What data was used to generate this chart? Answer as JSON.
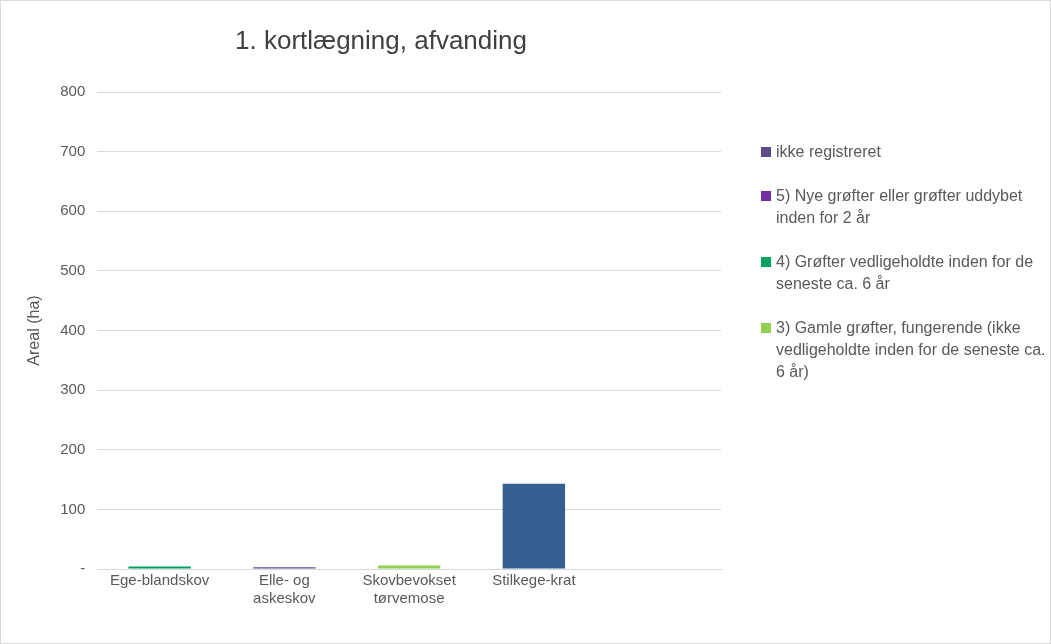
{
  "chart_data": {
    "type": "bar",
    "title": "1. kortlægning, afvanding",
    "ylabel": "Areal (ha)",
    "categories": [
      "Ege-blandskov",
      "Elle- og askeskov",
      "Skovbevokset tørvemose",
      "Stilkege-krat",
      null
    ],
    "stacked": true,
    "series": [
      {
        "color": "#355f91",
        "values": [
          0,
          0,
          0,
          143,
          0
        ]
      },
      {
        "name": "ikke registreret",
        "color": "#5e4b8b",
        "values": [
          0,
          3,
          0,
          0,
          0
        ]
      },
      {
        "name": "5) Nye grøfter eller grøfter uddybet inden for 2 år",
        "color": "#7030a0",
        "values": [
          0,
          0,
          0,
          0,
          0
        ]
      },
      {
        "name": "4) Grøfter vedligeholdte inden for de seneste ca. 6 år",
        "color": "#00a060",
        "values": [
          4,
          0,
          0,
          0,
          0
        ]
      },
      {
        "name": "3) Gamle grøfter, fungerende (ikke vedligeholdte inden for de seneste ca. 6 år)",
        "color": "#92d050",
        "values": [
          0,
          0,
          6,
          0,
          0
        ]
      }
    ],
    "ylim": [
      0,
      800
    ],
    "yticks": [
      {
        "value": 0,
        "label": "-"
      },
      100,
      200,
      300,
      400,
      500,
      600,
      700,
      800
    ],
    "grid": "y",
    "legend": "right"
  }
}
